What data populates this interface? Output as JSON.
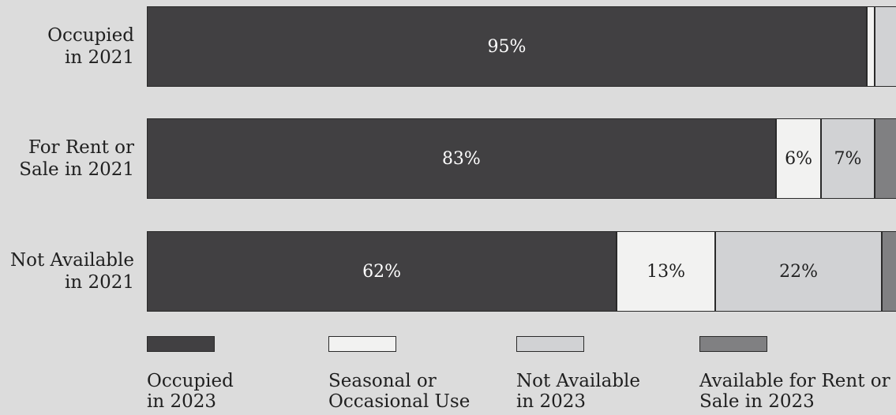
{
  "colors": {
    "background": "#dcdcdc",
    "occupied": "#414042",
    "seasonal": "#f2f2f1",
    "not_available": "#d1d2d4",
    "available": "#808082",
    "label_dark": "#1f1f1f",
    "label_light": "#ffffff"
  },
  "chart_data": {
    "type": "bar",
    "orientation": "horizontal",
    "stacked": true,
    "normalized": true,
    "categories": [
      "Occupied\nin 2021",
      "For Rent or\nSale in 2021",
      "Not Available\nin 2021"
    ],
    "series": [
      {
        "name": "Occupied\nin 2023",
        "values": [
          95,
          83,
          62
        ],
        "labels": [
          "95%",
          "83%",
          "62%"
        ],
        "color": "#414042"
      },
      {
        "name": "Seasonal or\nOccasional Use",
        "values": [
          1,
          6,
          13
        ],
        "labels": [
          "",
          "6%",
          "13%"
        ],
        "color": "#f2f2f1"
      },
      {
        "name": "Not Available\nin 2023",
        "values": [
          4,
          7,
          22
        ],
        "labels": [
          "",
          "7%",
          "22%"
        ],
        "color": "#d1d2d4"
      },
      {
        "name": "Available for Rent or\nSale in 2023",
        "values": [
          1,
          3,
          3
        ],
        "labels": [
          "",
          "",
          ""
        ],
        "color": "#808082"
      }
    ],
    "legend": "bottom",
    "grid": false
  }
}
